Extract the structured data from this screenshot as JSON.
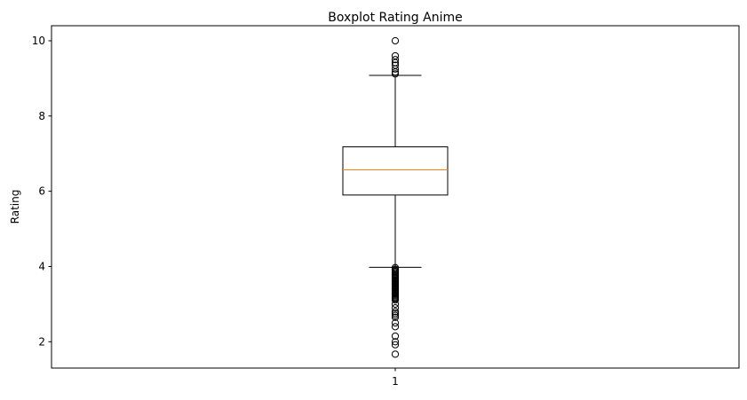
{
  "chart_data": {
    "type": "boxplot",
    "title": "Boxplot Rating Anime",
    "xlabel": "",
    "ylabel": "Rating",
    "ylim": [
      1.3,
      10.4
    ],
    "yticks": [
      2,
      4,
      6,
      8,
      10
    ],
    "ytick_labels": [
      "2",
      "4",
      "6",
      "8",
      "10"
    ],
    "categories": [
      "1"
    ],
    "grid": false,
    "box": {
      "q1": 5.9,
      "median": 6.57,
      "q3": 7.18,
      "whisker_low": 3.98,
      "whisker_high": 9.08
    },
    "outliers": [
      10.0,
      9.6,
      9.5,
      9.42,
      9.35,
      9.25,
      9.17,
      9.12,
      3.97,
      3.93,
      3.9,
      3.87,
      3.84,
      3.8,
      3.77,
      3.74,
      3.71,
      3.68,
      3.65,
      3.62,
      3.59,
      3.56,
      3.53,
      3.5,
      3.47,
      3.44,
      3.41,
      3.38,
      3.35,
      3.32,
      3.29,
      3.26,
      3.23,
      3.2,
      3.17,
      3.14,
      3.11,
      3.0,
      2.9,
      2.8,
      2.75,
      2.7,
      2.65,
      2.5,
      2.4,
      2.15,
      2.0,
      1.92,
      1.67
    ],
    "colors": {
      "box": "#000000",
      "median": "#ff7f0e",
      "outlier": "#000000"
    }
  }
}
